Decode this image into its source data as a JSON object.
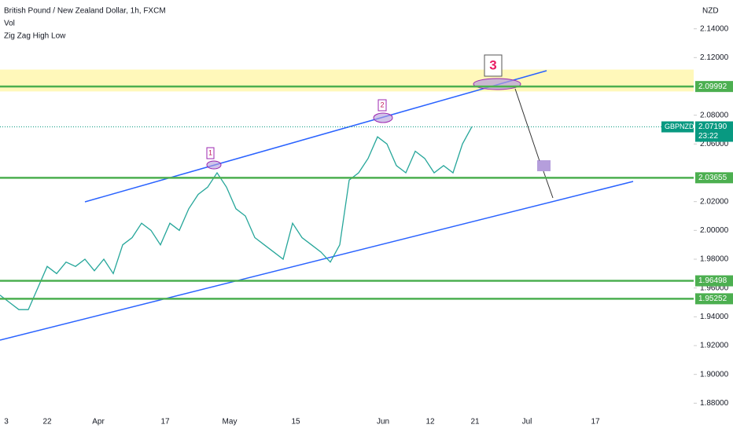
{
  "header": {
    "title": "British Pound / New Zealand Dollar, 1h, FXCM",
    "indicators": [
      "Vol",
      "Zig Zag High Low"
    ]
  },
  "axis": {
    "currency": "NZD",
    "ylim": [
      1.86,
      2.16
    ],
    "yticks": [
      {
        "value": 2.14,
        "label": "2.14000"
      },
      {
        "value": 2.12,
        "label": "2.12000"
      },
      {
        "value": 2.08,
        "label": "2.08000"
      },
      {
        "value": 2.06,
        "label": "2.06000"
      },
      {
        "value": 2.02,
        "label": "2.02000"
      },
      {
        "value": 2.0,
        "label": "2.00000"
      },
      {
        "value": 1.98,
        "label": "1.98000"
      },
      {
        "value": 1.96,
        "label": "1.96000"
      },
      {
        "value": 1.94,
        "label": "1.94000"
      },
      {
        "value": 1.92,
        "label": "1.92000"
      },
      {
        "value": 1.9,
        "label": "1.90000"
      },
      {
        "value": 1.88,
        "label": "1.88000"
      }
    ],
    "dates": [
      "3",
      "22",
      "Apr",
      "17",
      "May",
      "15",
      "Jun",
      "12",
      "21",
      "Jul",
      "17"
    ]
  },
  "zone": [
    2.0965,
    2.1117
  ],
  "levels": [
    {
      "value": 2.09992,
      "label": "2.09992"
    },
    {
      "value": 2.03655,
      "label": "2.03655"
    },
    {
      "value": 1.96498,
      "label": "1.96498"
    },
    {
      "value": 1.95252,
      "label": "1.95252"
    }
  ],
  "current": {
    "symbol": "GBPNZD",
    "price": 2.0719,
    "label": "2.07190",
    "countdown": "23:22"
  },
  "annotations": [
    "1",
    "2",
    "3"
  ],
  "price": [
    1.955,
    1.95,
    1.945,
    1.945,
    1.96,
    1.975,
    1.97,
    1.978,
    1.975,
    1.98,
    1.972,
    1.98,
    1.97,
    1.99,
    1.995,
    2.005,
    2.0,
    1.99,
    2.005,
    2.0,
    2.015,
    2.025,
    2.03,
    2.04,
    2.03,
    2.015,
    2.01,
    1.995,
    1.99,
    1.985,
    1.98,
    2.005,
    1.995,
    1.99,
    1.985,
    1.978,
    1.99,
    2.035,
    2.04,
    2.05,
    2.065,
    2.06,
    2.045,
    2.04,
    2.055,
    2.05,
    2.04,
    2.045,
    2.04,
    2.06,
    2.072
  ]
}
